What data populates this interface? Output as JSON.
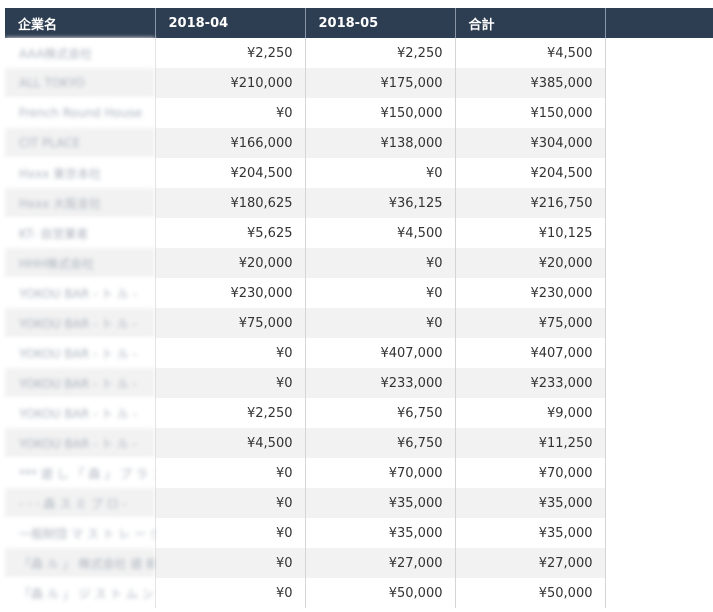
{
  "table": {
    "headers": [
      "企業名",
      "2018-04",
      "2018-05",
      "合計"
    ],
    "rows": [
      {
        "company": "AAA株式会社",
        "m04": "¥2,250",
        "m05": "¥2,250",
        "total": "¥4,500"
      },
      {
        "company": "ALL TOKYO",
        "m04": "¥210,000",
        "m05": "¥175,000",
        "total": "¥385,000"
      },
      {
        "company": "French Round House",
        "m04": "¥0",
        "m05": "¥150,000",
        "total": "¥150,000"
      },
      {
        "company": "CIT PLACE",
        "m04": "¥166,000",
        "m05": "¥138,000",
        "total": "¥304,000"
      },
      {
        "company": "Hxxx 東京本社",
        "m04": "¥204,500",
        "m05": "¥0",
        "total": "¥204,500"
      },
      {
        "company": "Hxxx 大阪支社",
        "m04": "¥180,625",
        "m05": "¥36,125",
        "total": "¥216,750"
      },
      {
        "company": "KT- 自営業者",
        "m04": "¥5,625",
        "m05": "¥4,500",
        "total": "¥10,125"
      },
      {
        "company": "HHH株式会社",
        "m04": "¥20,000",
        "m05": "¥0",
        "total": "¥20,000"
      },
      {
        "company": "YOKOU BAR - ト ル -",
        "m04": "¥230,000",
        "m05": "¥0",
        "total": "¥230,000"
      },
      {
        "company": "YOKOU BAR - ト ル -",
        "m04": "¥75,000",
        "m05": "¥0",
        "total": "¥75,000"
      },
      {
        "company": "YOKOU BAR - ト ル -",
        "m04": "¥0",
        "m05": "¥407,000",
        "total": "¥407,000"
      },
      {
        "company": "YOKOU BAR - ト ル -",
        "m04": "¥0",
        "m05": "¥233,000",
        "total": "¥233,000"
      },
      {
        "company": "YOKOU BAR - ト ル -",
        "m04": "¥2,250",
        "m05": "¥6,750",
        "total": "¥9,000"
      },
      {
        "company": "YOKOU BAR - ト ル -",
        "m04": "¥4,500",
        "m05": "¥6,750",
        "total": "¥11,250"
      },
      {
        "company": "*** 遊 し 「 森 」 プ ラ ン -",
        "m04": "¥0",
        "m05": "¥70,000",
        "total": "¥70,000"
      },
      {
        "company": "- - - 森 ス ミ プ ロ -",
        "m04": "¥0",
        "m05": "¥35,000",
        "total": "¥35,000"
      },
      {
        "company": "一般財団 マ ス ト レ ー ダ -",
        "m04": "¥0",
        "m05": "¥35,000",
        "total": "¥35,000"
      },
      {
        "company": "「森 ル 」 株式会社 遊 郎",
        "m04": "¥0",
        "m05": "¥27,000",
        "total": "¥27,000"
      },
      {
        "company": "「森 ル 」 ジ ス ト ム ン",
        "m04": "¥0",
        "m05": "¥50,000",
        "total": "¥50,000"
      }
    ]
  }
}
